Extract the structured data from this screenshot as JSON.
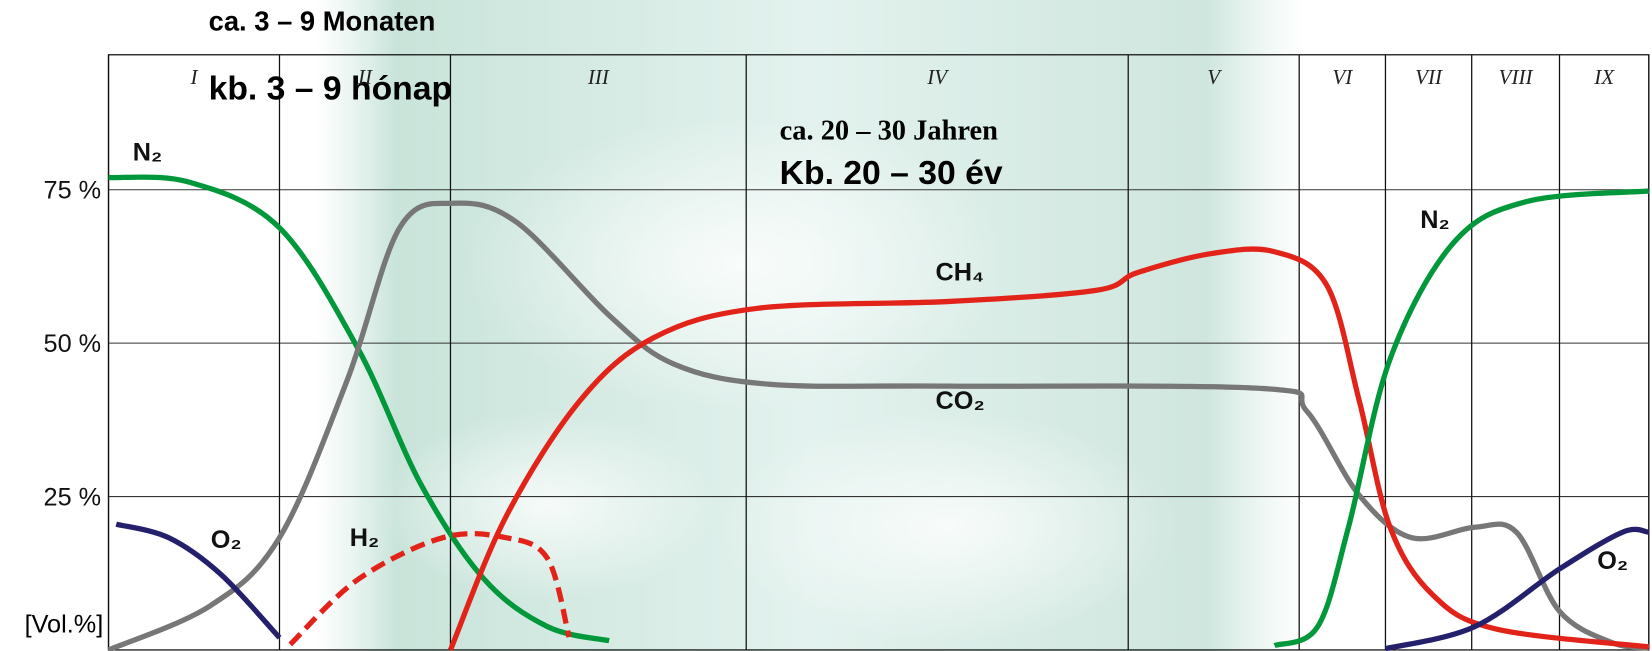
{
  "chart_data": {
    "type": "line",
    "annotations": [
      "ca. 3 – 9 Monaten",
      "kb. 3 – 9 hónap",
      "ca. 20 – 30 Jahren",
      "Kb.  20 – 30 év"
    ],
    "ylabel": "[Vol.%]",
    "phases": [
      "I",
      "II",
      "III",
      "IV",
      "V",
      "VI",
      "VII",
      "VIII",
      "IX"
    ],
    "phase_boundaries": [
      0,
      11.1,
      22.2,
      41.4,
      66.2,
      77.3,
      82.9,
      88.5,
      94.2,
      100
    ],
    "xlim": [
      0,
      100
    ],
    "ylim": [
      0,
      97
    ],
    "yticks": [
      {
        "value": 25,
        "label": "25 %"
      },
      {
        "value": 50,
        "label": "50 %"
      },
      {
        "value": 75,
        "label": "75 %"
      }
    ],
    "grid": true,
    "series": [
      {
        "name": "N₂",
        "color": "#00983a",
        "x": [
          0,
          5.3,
          11.1,
          16.2,
          20.3,
          24.4,
          28.5,
          32.5
        ],
        "values": [
          77,
          76.2,
          68.8,
          49.1,
          26.9,
          11.5,
          3.8,
          1.5
        ]
      },
      {
        "name": "CO₂",
        "color": "#777777",
        "x": [
          0,
          6.6,
          11.1,
          15.5,
          18.9,
          22.4,
          26.5,
          32.6,
          36.7,
          42.9,
          54.6,
          75.0,
          77.8,
          81.2,
          84.6,
          88.7,
          91.4,
          94.2,
          97.6,
          100
        ],
        "values": [
          0,
          7.2,
          18.3,
          44,
          68.8,
          72.8,
          69.7,
          54.3,
          46.6,
          43.3,
          43,
          42.6,
          38.9,
          25.2,
          18.3,
          20,
          19.2,
          6.3,
          1.2,
          0.3
        ]
      },
      {
        "name": "CH₄",
        "color": "#e2231a",
        "x": [
          22.2,
          25.8,
          30.6,
          35.4,
          42.2,
          54.6,
          64.1,
          66.8,
          71.6,
          75.7,
          79.1,
          81.2,
          83.2,
          86.0,
          90.1,
          100
        ],
        "values": [
          0,
          21.7,
          40.6,
          50.9,
          55.7,
          56.8,
          58.6,
          61.5,
          64.6,
          64.9,
          59.4,
          40.6,
          20,
          8.9,
          3.4,
          0.5
        ]
      },
      {
        "name": "H₂",
        "color": "#e2231a",
        "dashed": true,
        "x": [
          11.8,
          16.2,
          21.7,
          25.8,
          28.5,
          29.9
        ],
        "values": [
          0.9,
          11.5,
          18.3,
          18.3,
          14.9,
          2.1
        ]
      },
      {
        "name": "O₂",
        "color": "#24206b",
        "x": [
          0.5,
          3.9,
          7.3,
          11.1
        ],
        "values": [
          20.5,
          18.3,
          12.3,
          2
        ]
      },
      {
        "name": "N₂",
        "color": "#00983a",
        "x": [
          75.7,
          78.5,
          80.5,
          83.2,
          87.3,
          92.1,
          100
        ],
        "values": [
          0.7,
          3.8,
          20,
          47.4,
          66.3,
          73.1,
          74.8
        ]
      },
      {
        "name": "O₂",
        "color": "#24206b",
        "x": [
          82.9,
          88.7,
          94.2,
          98.3,
          100
        ],
        "values": [
          0.2,
          3.8,
          13.2,
          19.2,
          19.2
        ]
      }
    ]
  }
}
